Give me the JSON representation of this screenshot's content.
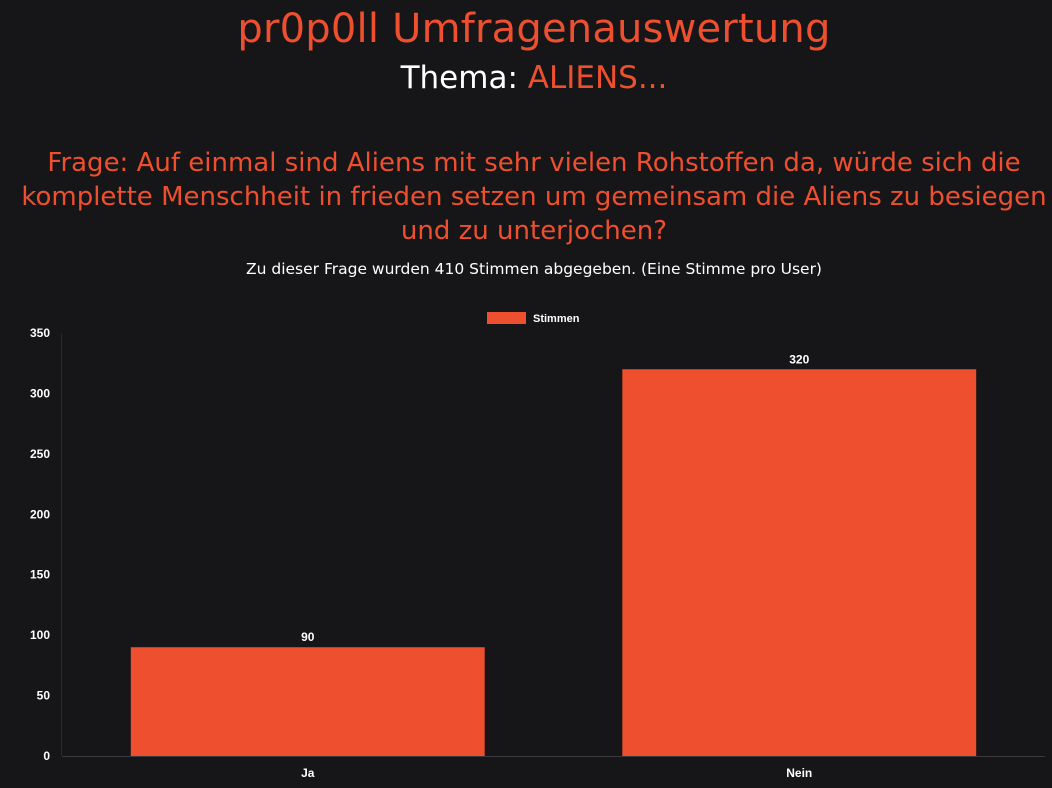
{
  "header": {
    "title": "pr0p0ll Umfragenauswertung",
    "topic_label": "Thema:",
    "topic_value": "ALIENS..."
  },
  "question": {
    "text": "Frage: Auf einmal sind Aliens mit sehr vielen Rohstoffen da, würde sich die komplette Menschheit in frieden setzen um gemeinsam die Aliens zu besiegen und zu unterjochen?"
  },
  "votes_info": "Zu dieser Frage wurden 410 Stimmen abgegeben. (Eine Stimme pro User)",
  "colors": {
    "accent": "#ee4f2e",
    "background": "#161618",
    "text": "#ffffff"
  },
  "chart_data": {
    "type": "bar",
    "categories": [
      "Ja",
      "Nein"
    ],
    "series": [
      {
        "name": "Stimmen",
        "values": [
          90,
          320
        ],
        "color": "#ee4f2e"
      }
    ],
    "data_labels": [
      "90",
      "320"
    ],
    "ylim": [
      0,
      350
    ],
    "yticks": [
      0,
      50,
      100,
      150,
      200,
      250,
      300,
      350
    ],
    "legend": "top-center",
    "grid": false
  }
}
